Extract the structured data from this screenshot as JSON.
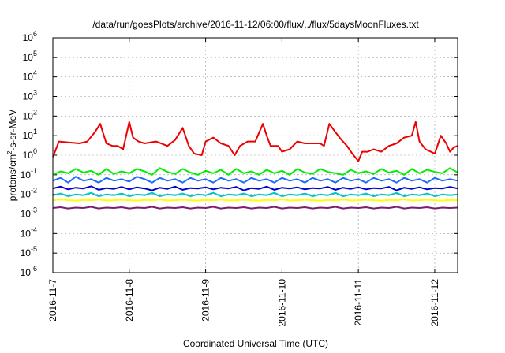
{
  "chart_data": {
    "type": "line",
    "title": "/data/run/goesPlots/archive/2016-11-12/06:00/flux/../flux/5daysMoonFluxes.txt",
    "xlabel": "Coordinated Universal Time (UTC)",
    "ylabel": {
      "base": "protons/cm",
      "sup": "2",
      "rest": "-s-sr-MeV"
    },
    "yscale": "log",
    "ylim_exp": [
      -6,
      6
    ],
    "y_ticks": [
      {
        "exp": -6,
        "label": "-6"
      },
      {
        "exp": -5,
        "label": "-5"
      },
      {
        "exp": -4,
        "label": "-4"
      },
      {
        "exp": -3,
        "label": "-3"
      },
      {
        "exp": -2,
        "label": "-2"
      },
      {
        "exp": -1,
        "label": "-1"
      },
      {
        "exp": 0,
        "label": "0"
      },
      {
        "exp": 1,
        "label": "1"
      },
      {
        "exp": 2,
        "label": "2"
      },
      {
        "exp": 3,
        "label": "3"
      },
      {
        "exp": 4,
        "label": "4"
      },
      {
        "exp": 5,
        "label": "5"
      },
      {
        "exp": 6,
        "label": "6"
      }
    ],
    "y_tick_base": "10",
    "xlim_days": [
      0,
      5.3
    ],
    "x_ticks": [
      {
        "day": 0,
        "label": "2016-11-7"
      },
      {
        "day": 1,
        "label": "2016-11-8"
      },
      {
        "day": 2,
        "label": "2016-11-9"
      },
      {
        "day": 3,
        "label": "2016-11-10"
      },
      {
        "day": 4,
        "label": "2016-11-11"
      },
      {
        "day": 5,
        "label": "2016-11-12"
      }
    ],
    "grid": true,
    "series": [
      {
        "color": "#ee0000",
        "day": [
          0.0,
          0.08,
          0.2,
          0.35,
          0.45,
          0.55,
          0.62,
          0.7,
          0.78,
          0.85,
          0.92,
          1.0,
          1.05,
          1.12,
          1.2,
          1.35,
          1.5,
          1.6,
          1.7,
          1.78,
          1.85,
          1.95,
          2.0,
          2.1,
          2.2,
          2.3,
          2.38,
          2.45,
          2.55,
          2.65,
          2.75,
          2.8,
          2.85,
          2.95,
          3.0,
          3.1,
          3.2,
          3.3,
          3.4,
          3.5,
          3.55,
          3.62,
          3.7,
          3.78,
          3.85,
          3.92,
          4.0,
          4.05,
          4.12,
          4.2,
          4.3,
          4.4,
          4.5,
          4.6,
          4.7,
          4.75,
          4.8,
          4.88,
          4.95,
          5.0,
          5.08,
          5.15,
          5.2,
          5.25,
          5.3
        ],
        "value": [
          0.8,
          5,
          4.5,
          4,
          5,
          15,
          40,
          4,
          3,
          3,
          2,
          50,
          8,
          5,
          4,
          5,
          3,
          6,
          25,
          3,
          1.2,
          1,
          5,
          8,
          4,
          3,
          1,
          3,
          5,
          5,
          40,
          10,
          3,
          3,
          1.5,
          2,
          5,
          4,
          4,
          4,
          3,
          40,
          15,
          6,
          3,
          1.2,
          0.5,
          1.5,
          1.5,
          2,
          1.5,
          3,
          4,
          8,
          10,
          50,
          5,
          2,
          1.5,
          1.2,
          10,
          4,
          1.5,
          2.5,
          3
        ]
      },
      {
        "color": "#00ee00",
        "day": [
          0.0,
          0.1,
          0.2,
          0.3,
          0.4,
          0.5,
          0.6,
          0.7,
          0.8,
          0.9,
          1.0,
          1.1,
          1.2,
          1.3,
          1.4,
          1.5,
          1.6,
          1.7,
          1.8,
          1.9,
          2.0,
          2.1,
          2.2,
          2.3,
          2.4,
          2.5,
          2.6,
          2.7,
          2.8,
          2.9,
          3.0,
          3.1,
          3.2,
          3.3,
          3.4,
          3.5,
          3.6,
          3.7,
          3.8,
          3.9,
          4.0,
          4.1,
          4.2,
          4.3,
          4.4,
          4.5,
          4.6,
          4.7,
          4.8,
          4.9,
          5.0,
          5.1,
          5.2,
          5.3
        ],
        "value": [
          0.1,
          0.15,
          0.12,
          0.2,
          0.13,
          0.16,
          0.1,
          0.2,
          0.11,
          0.15,
          0.12,
          0.2,
          0.15,
          0.1,
          0.22,
          0.14,
          0.11,
          0.2,
          0.13,
          0.1,
          0.16,
          0.12,
          0.18,
          0.1,
          0.2,
          0.12,
          0.15,
          0.1,
          0.18,
          0.12,
          0.16,
          0.1,
          0.2,
          0.13,
          0.11,
          0.2,
          0.14,
          0.12,
          0.1,
          0.18,
          0.12,
          0.15,
          0.11,
          0.2,
          0.13,
          0.16,
          0.1,
          0.2,
          0.12,
          0.18,
          0.14,
          0.12,
          0.22,
          0.13
        ]
      },
      {
        "color": "#1e6cff",
        "day": [
          0.0,
          0.1,
          0.2,
          0.3,
          0.4,
          0.5,
          0.6,
          0.7,
          0.8,
          0.9,
          1.0,
          1.1,
          1.2,
          1.3,
          1.4,
          1.5,
          1.6,
          1.7,
          1.8,
          1.9,
          2.0,
          2.1,
          2.2,
          2.3,
          2.4,
          2.5,
          2.6,
          2.7,
          2.8,
          2.9,
          3.0,
          3.1,
          3.2,
          3.3,
          3.4,
          3.5,
          3.6,
          3.7,
          3.8,
          3.9,
          4.0,
          4.1,
          4.2,
          4.3,
          4.4,
          4.5,
          4.6,
          4.7,
          4.8,
          4.9,
          5.0,
          5.1,
          5.2,
          5.3
        ],
        "value": [
          0.05,
          0.07,
          0.04,
          0.08,
          0.05,
          0.06,
          0.04,
          0.07,
          0.05,
          0.06,
          0.045,
          0.08,
          0.06,
          0.04,
          0.07,
          0.05,
          0.06,
          0.04,
          0.07,
          0.05,
          0.06,
          0.04,
          0.07,
          0.05,
          0.06,
          0.04,
          0.07,
          0.05,
          0.06,
          0.04,
          0.07,
          0.05,
          0.06,
          0.04,
          0.07,
          0.05,
          0.06,
          0.04,
          0.07,
          0.05,
          0.06,
          0.04,
          0.07,
          0.05,
          0.06,
          0.04,
          0.07,
          0.05,
          0.06,
          0.04,
          0.07,
          0.05,
          0.06,
          0.05
        ]
      },
      {
        "color": "#0000cc",
        "day": [
          0.0,
          0.1,
          0.2,
          0.3,
          0.4,
          0.5,
          0.6,
          0.7,
          0.8,
          0.9,
          1.0,
          1.1,
          1.2,
          1.3,
          1.4,
          1.5,
          1.6,
          1.7,
          1.8,
          1.9,
          2.0,
          2.1,
          2.2,
          2.3,
          2.4,
          2.5,
          2.6,
          2.7,
          2.8,
          2.9,
          3.0,
          3.1,
          3.2,
          3.3,
          3.4,
          3.5,
          3.6,
          3.7,
          3.8,
          3.9,
          4.0,
          4.1,
          4.2,
          4.3,
          4.4,
          4.5,
          4.6,
          4.7,
          4.8,
          4.9,
          5.0,
          5.1,
          5.2,
          5.3
        ],
        "value": [
          0.02,
          0.025,
          0.018,
          0.022,
          0.02,
          0.026,
          0.017,
          0.021,
          0.019,
          0.024,
          0.018,
          0.023,
          0.02,
          0.016,
          0.022,
          0.019,
          0.025,
          0.017,
          0.021,
          0.02,
          0.023,
          0.018,
          0.022,
          0.02,
          0.024,
          0.016,
          0.021,
          0.019,
          0.025,
          0.017,
          0.022,
          0.02,
          0.023,
          0.018,
          0.021,
          0.02,
          0.024,
          0.017,
          0.022,
          0.019,
          0.023,
          0.018,
          0.021,
          0.02,
          0.024,
          0.016,
          0.022,
          0.019,
          0.023,
          0.018,
          0.021,
          0.02,
          0.024,
          0.02
        ]
      },
      {
        "color": "#00c8c8",
        "day": [
          0.0,
          0.1,
          0.2,
          0.3,
          0.4,
          0.5,
          0.6,
          0.7,
          0.8,
          0.9,
          1.0,
          1.1,
          1.2,
          1.3,
          1.4,
          1.5,
          1.6,
          1.7,
          1.8,
          1.9,
          2.0,
          2.1,
          2.2,
          2.3,
          2.4,
          2.5,
          2.6,
          2.7,
          2.8,
          2.9,
          3.0,
          3.1,
          3.2,
          3.3,
          3.4,
          3.5,
          3.6,
          3.7,
          3.8,
          3.9,
          4.0,
          4.1,
          4.2,
          4.3,
          4.4,
          4.5,
          4.6,
          4.7,
          4.8,
          4.9,
          5.0,
          5.1,
          5.2,
          5.3
        ],
        "value": [
          0.009,
          0.011,
          0.008,
          0.01,
          0.009,
          0.012,
          0.008,
          0.01,
          0.009,
          0.011,
          0.008,
          0.01,
          0.009,
          0.012,
          0.008,
          0.01,
          0.009,
          0.011,
          0.008,
          0.01,
          0.009,
          0.012,
          0.008,
          0.01,
          0.009,
          0.011,
          0.008,
          0.01,
          0.009,
          0.012,
          0.008,
          0.01,
          0.009,
          0.011,
          0.008,
          0.01,
          0.009,
          0.012,
          0.008,
          0.01,
          0.009,
          0.011,
          0.008,
          0.01,
          0.009,
          0.012,
          0.008,
          0.01,
          0.009,
          0.011,
          0.008,
          0.01,
          0.009,
          0.01
        ]
      },
      {
        "color": "#ffff00",
        "day": [
          0.0,
          0.1,
          0.2,
          0.3,
          0.4,
          0.5,
          0.6,
          0.7,
          0.8,
          0.9,
          1.0,
          1.1,
          1.2,
          1.3,
          1.4,
          1.5,
          1.6,
          1.7,
          1.8,
          1.9,
          2.0,
          2.1,
          2.2,
          2.3,
          2.4,
          2.5,
          2.6,
          2.7,
          2.8,
          2.9,
          3.0,
          3.1,
          3.2,
          3.3,
          3.4,
          3.5,
          3.6,
          3.7,
          3.8,
          3.9,
          4.0,
          4.1,
          4.2,
          4.3,
          4.4,
          4.5,
          4.6,
          4.7,
          4.8,
          4.9,
          5.0,
          5.1,
          5.2,
          5.3
        ],
        "value": [
          0.005,
          0.0055,
          0.005,
          0.0048,
          0.0052,
          0.005,
          0.0054,
          0.0049,
          0.005,
          0.0053,
          0.005,
          0.0048,
          0.0052,
          0.005,
          0.0055,
          0.0049,
          0.005,
          0.0053,
          0.005,
          0.0048,
          0.0052,
          0.005,
          0.0054,
          0.0049,
          0.005,
          0.0053,
          0.005,
          0.0048,
          0.0052,
          0.005,
          0.0055,
          0.0049,
          0.005,
          0.0053,
          0.005,
          0.0048,
          0.0052,
          0.005,
          0.0054,
          0.0049,
          0.005,
          0.0053,
          0.005,
          0.0048,
          0.0052,
          0.005,
          0.0055,
          0.0049,
          0.005,
          0.0053,
          0.005,
          0.0048,
          0.0052,
          0.005
        ]
      },
      {
        "color": "#7a1f6e",
        "day": [
          0.0,
          0.1,
          0.2,
          0.3,
          0.4,
          0.5,
          0.6,
          0.7,
          0.8,
          0.9,
          1.0,
          1.1,
          1.2,
          1.3,
          1.4,
          1.5,
          1.6,
          1.7,
          1.8,
          1.9,
          2.0,
          2.1,
          2.2,
          2.3,
          2.4,
          2.5,
          2.6,
          2.7,
          2.8,
          2.9,
          3.0,
          3.1,
          3.2,
          3.3,
          3.4,
          3.5,
          3.6,
          3.7,
          3.8,
          3.9,
          4.0,
          4.1,
          4.2,
          4.3,
          4.4,
          4.5,
          4.6,
          4.7,
          4.8,
          4.9,
          5.0,
          5.1,
          5.2,
          5.3
        ],
        "value": [
          0.002,
          0.0022,
          0.0019,
          0.0021,
          0.002,
          0.0023,
          0.0019,
          0.0021,
          0.002,
          0.0022,
          0.0019,
          0.0021,
          0.002,
          0.0023,
          0.0019,
          0.0021,
          0.002,
          0.0022,
          0.0019,
          0.0021,
          0.002,
          0.0023,
          0.0019,
          0.0021,
          0.002,
          0.0022,
          0.0019,
          0.0021,
          0.002,
          0.0023,
          0.0019,
          0.0021,
          0.002,
          0.0022,
          0.0019,
          0.0021,
          0.002,
          0.0023,
          0.0019,
          0.0021,
          0.002,
          0.0022,
          0.0019,
          0.0021,
          0.002,
          0.0023,
          0.0019,
          0.0021,
          0.002,
          0.0022,
          0.0019,
          0.0021,
          0.002,
          0.0021
        ]
      }
    ]
  }
}
